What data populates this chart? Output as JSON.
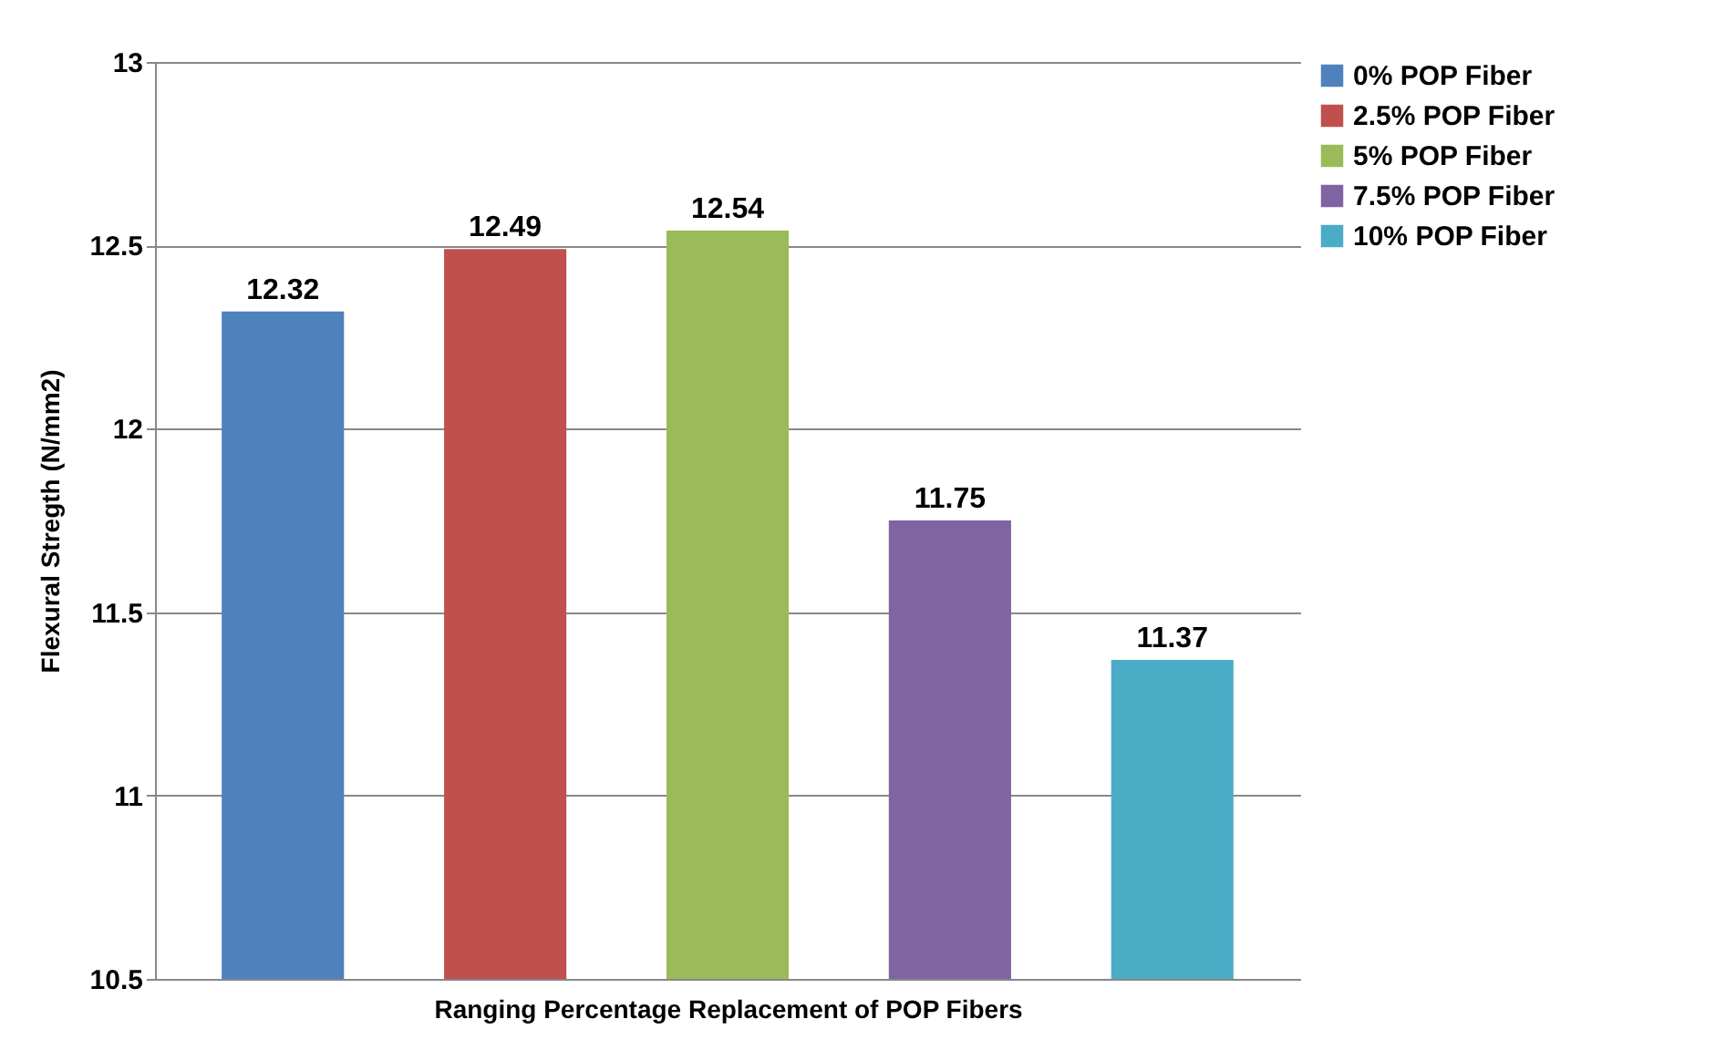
{
  "chart_data": {
    "type": "bar",
    "xlabel": "Ranging Percentage Replacement of POP Fibers",
    "ylabel": "Flexural Stregth (N/mm2)",
    "categories": [
      null,
      null,
      null,
      null,
      null
    ],
    "series": [
      {
        "name": "0% POP Fiber",
        "color": "#4f81bd",
        "values": [
          12.32,
          null,
          null,
          null,
          null
        ]
      },
      {
        "name": "2.5% POP Fiber",
        "color": "#c0504d",
        "values": [
          null,
          12.49,
          null,
          null,
          null
        ]
      },
      {
        "name": "5% POP Fiber",
        "color": "#9bbb59",
        "values": [
          null,
          null,
          12.54,
          null,
          null
        ]
      },
      {
        "name": "7.5% POP Fiber",
        "color": "#8064a2",
        "values": [
          null,
          null,
          null,
          11.75,
          null
        ]
      },
      {
        "name": "10% POP Fiber",
        "color": "#4bacc6",
        "values": [
          null,
          null,
          null,
          null,
          11.37
        ]
      }
    ],
    "ylim": [
      10.5,
      13
    ],
    "yticks": [
      10.5,
      11,
      11.5,
      12,
      12.5,
      13
    ],
    "grid": "y",
    "legend": "right",
    "tick_labels": "y",
    "data_labels": true
  }
}
